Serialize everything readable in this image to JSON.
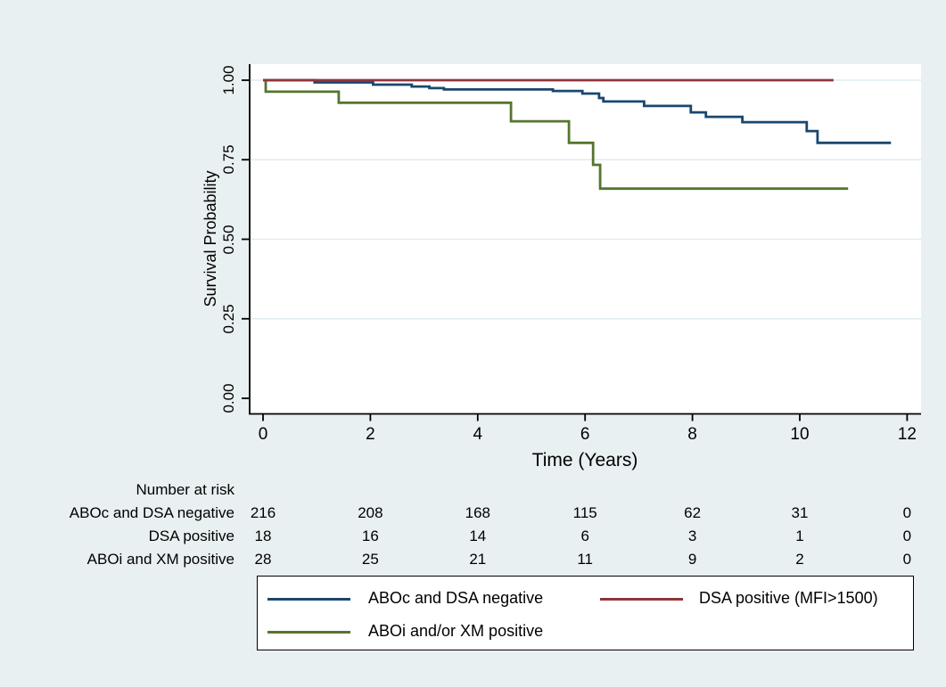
{
  "colors": {
    "background": "#e9f0f2",
    "plot_background": "#ffffff",
    "gridline": "#dfecf0",
    "axis": "#000000",
    "text": "#000000",
    "legend_border": "#000000",
    "navy": "#1a476f",
    "maroon": "#90353b",
    "olive": "#55752f"
  },
  "chart_data": {
    "type": "line",
    "subtype": "kaplan-meier-step",
    "title": "",
    "xlabel": "Time (Years)",
    "ylabel": "Survival Probability",
    "xlim": [
      0,
      12
    ],
    "ylim": [
      0.0,
      1.0
    ],
    "xticks": [
      0,
      2,
      4,
      6,
      8,
      10,
      12
    ],
    "xtick_labels": [
      "0",
      "2",
      "4",
      "6",
      "8",
      "10",
      "12"
    ],
    "ytick_values": [
      0.0,
      0.25,
      0.5,
      0.75,
      1.0
    ],
    "ytick_labels": [
      "0.00",
      "0.25",
      "0.50",
      "0.75",
      "1.00"
    ],
    "grid": "horizontal-only",
    "gridline_at": [
      0.25,
      0.5,
      0.75,
      1.0
    ],
    "legend_position": "bottom",
    "draw_order": [
      0,
      2,
      1
    ],
    "series": [
      {
        "name": "ABOc and DSA negative",
        "color": "#1a476f",
        "steps": [
          [
            0,
            1.0
          ],
          [
            0.96,
            0.993
          ],
          [
            2.05,
            0.986
          ],
          [
            2.77,
            0.98
          ],
          [
            3.1,
            0.975
          ],
          [
            3.37,
            0.971
          ],
          [
            5.4,
            0.966
          ],
          [
            5.95,
            0.958
          ],
          [
            6.26,
            0.944
          ],
          [
            6.34,
            0.933
          ],
          [
            7.1,
            0.919
          ],
          [
            7.97,
            0.899
          ],
          [
            8.25,
            0.885
          ],
          [
            8.93,
            0.868
          ],
          [
            10.13,
            0.84
          ],
          [
            10.33,
            0.803
          ]
        ],
        "end_time": 11.7
      },
      {
        "name": "DSA positive (MFI>1500)",
        "color": "#90353b",
        "steps": [
          [
            0,
            1.0
          ]
        ],
        "end_time": 10.63
      },
      {
        "name": "ABOi and/or XM positive",
        "color": "#55752f",
        "steps": [
          [
            0,
            1.0
          ],
          [
            0.05,
            0.964
          ],
          [
            1.41,
            0.929
          ],
          [
            4.62,
            0.871
          ],
          [
            5.7,
            0.803
          ],
          [
            6.15,
            0.734
          ],
          [
            6.28,
            0.659
          ]
        ],
        "end_time": 10.9
      }
    ],
    "risk_table": {
      "title": "Number at risk",
      "times": [
        0,
        2,
        4,
        6,
        8,
        10,
        12
      ],
      "rows": [
        {
          "label": "ABOc and DSA negative",
          "counts": [
            "216",
            "208",
            "168",
            "115",
            "62",
            "31",
            "0"
          ]
        },
        {
          "label": "DSA positive",
          "counts": [
            "18",
            "16",
            "14",
            "6",
            "3",
            "1",
            "0"
          ]
        },
        {
          "label": "ABOi and XM positive",
          "counts": [
            "28",
            "25",
            "21",
            "11",
            "9",
            "2",
            "0"
          ]
        }
      ]
    },
    "legend_items": [
      {
        "series_index": 0,
        "label": "ABOc and DSA negative"
      },
      {
        "series_index": 1,
        "label": "DSA positive (MFI>1500)"
      },
      {
        "series_index": 2,
        "label": "ABOi and/or XM positive"
      }
    ]
  }
}
